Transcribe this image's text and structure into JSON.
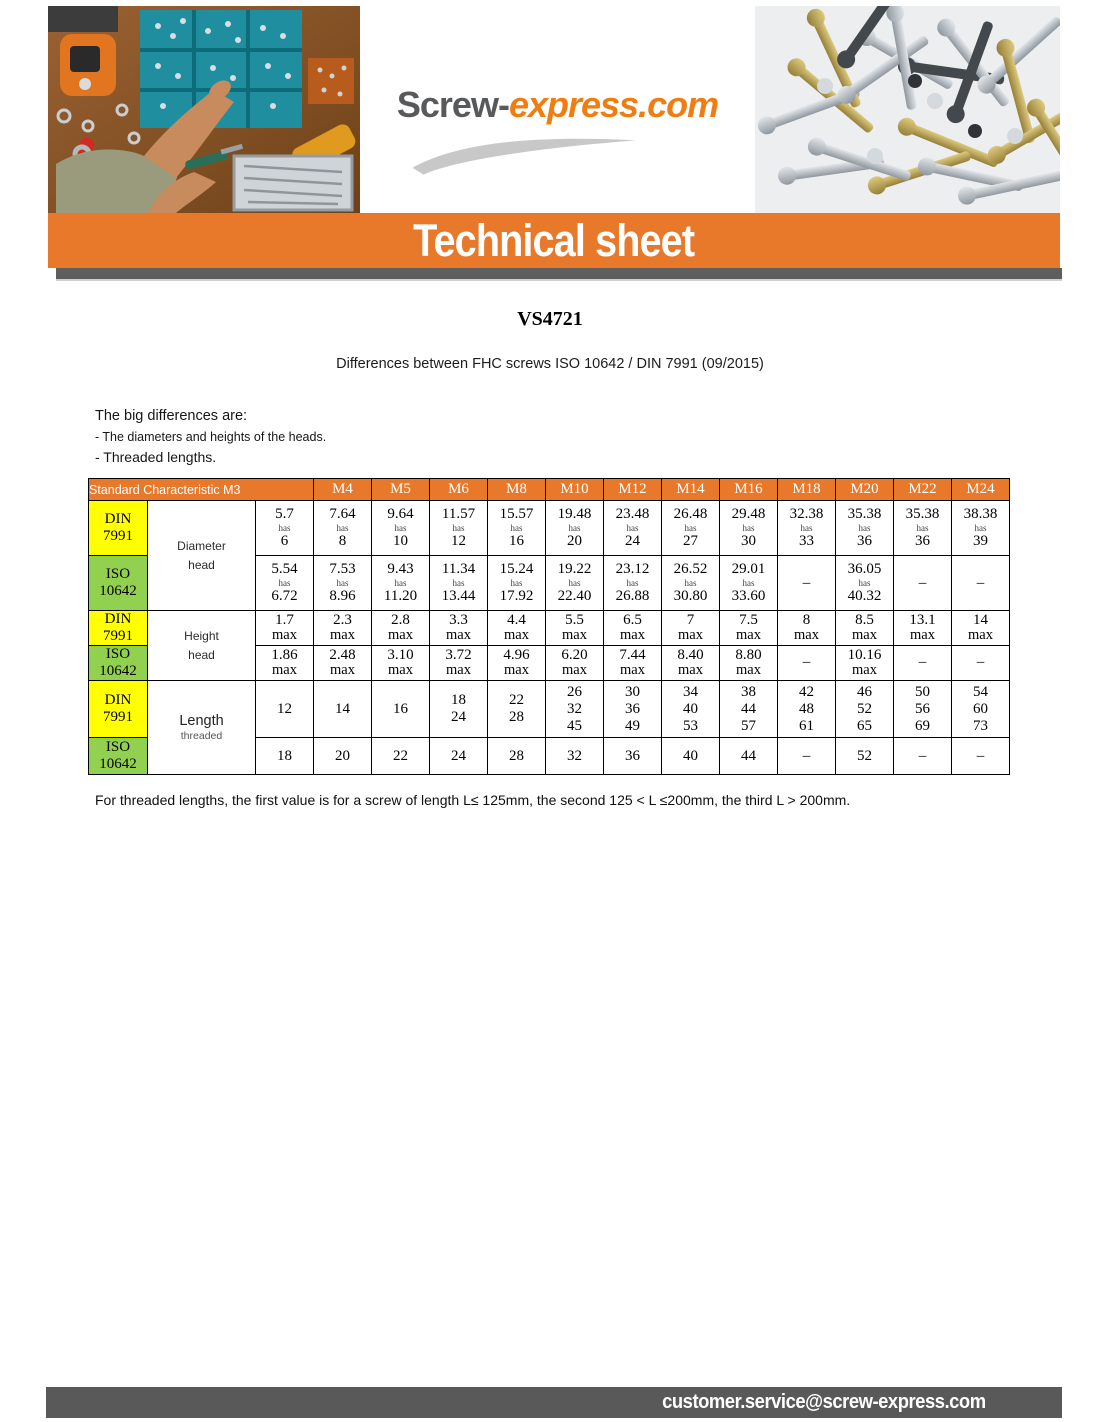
{
  "brand": {
    "logo_prefix": "Screw-",
    "logo_suffix": "express.com"
  },
  "banner": {
    "title": "Technical sheet"
  },
  "doc": {
    "code": "VS4721",
    "subtitle": "Differences between FHC screws ISO 10642 / DIN 7991 (09/2015)",
    "intro": [
      "The big differences are:",
      "- The diameters and heights of the heads.",
      "- Threaded lengths."
    ],
    "footnote": "For threaded lengths, the first value is for a screw of length L≤ 125mm, the second 125 < L ≤200mm, the third L > 200mm."
  },
  "footer": {
    "email": "customer.service@screw-express.com"
  },
  "colors": {
    "orange": "#E8782A",
    "yellow": "#FFFF00",
    "green": "#92D050",
    "bar_gray": "#595959",
    "logo_gray": "#58595B",
    "logo_orange": "#F07D12"
  },
  "photos": {
    "left": "workbench-with-screw-boxes-and-tools",
    "right": "pile-of-countersunk-screws"
  },
  "table": {
    "header": {
      "merged_label": "Standard Characteristic M3",
      "sizes": [
        "M4",
        "M5",
        "M6",
        "M8",
        "M10",
        "M12",
        "M14",
        "M16",
        "M18",
        "M20",
        "M22",
        "M24"
      ]
    },
    "row_groups": [
      {
        "characteristic": [
          "Diameter",
          "head"
        ],
        "rows": [
          {
            "standard": [
              "DIN",
              "7991"
            ],
            "cells": [
              [
                "5.7",
                "has",
                "6"
              ],
              [
                "7.64",
                "has",
                "8"
              ],
              [
                "9.64",
                "has",
                "10"
              ],
              [
                "11.57",
                "has",
                "12"
              ],
              [
                "15.57",
                "has",
                "16"
              ],
              [
                "19.48",
                "has",
                "20"
              ],
              [
                "23.48",
                "has",
                "24"
              ],
              [
                "26.48",
                "has",
                "27"
              ],
              [
                "29.48",
                "has",
                "30"
              ],
              [
                "32.38",
                "has",
                "33"
              ],
              [
                "35.38",
                "has",
                "36"
              ],
              [
                "35.38",
                "has",
                "36"
              ],
              [
                "38.38",
                "has",
                "39"
              ]
            ]
          },
          {
            "standard": [
              "ISO",
              "10642"
            ],
            "cells": [
              [
                "5.54",
                "has",
                "6.72"
              ],
              [
                "7.53",
                "has",
                "8.96"
              ],
              [
                "9.43",
                "has",
                "11.20"
              ],
              [
                "11.34",
                "has",
                "13.44"
              ],
              [
                "15.24",
                "has",
                "17.92"
              ],
              [
                "19.22",
                "has",
                "22.40"
              ],
              [
                "23.12",
                "has",
                "26.88"
              ],
              [
                "26.52",
                "has",
                "30.80"
              ],
              [
                "29.01",
                "has",
                "33.60"
              ],
              [
                "–"
              ],
              [
                "36.05",
                "has",
                "40.32"
              ],
              [
                "–"
              ],
              [
                "–"
              ]
            ]
          }
        ]
      },
      {
        "characteristic": [
          "Height",
          "head"
        ],
        "rows": [
          {
            "standard": [
              "DIN",
              "7991"
            ],
            "cells": [
              [
                "1.7",
                "max"
              ],
              [
                "2.3",
                "max"
              ],
              [
                "2.8",
                "max"
              ],
              [
                "3.3",
                "max"
              ],
              [
                "4.4",
                "max"
              ],
              [
                "5.5",
                "max"
              ],
              [
                "6.5",
                "max"
              ],
              [
                "7",
                "max"
              ],
              [
                "7.5",
                "max"
              ],
              [
                "8",
                "max"
              ],
              [
                "8.5",
                "max"
              ],
              [
                "13.1",
                "max"
              ],
              [
                "14",
                "max"
              ]
            ]
          },
          {
            "standard": [
              "ISO",
              "10642"
            ],
            "cells": [
              [
                "1.86",
                "max"
              ],
              [
                "2.48",
                "max"
              ],
              [
                "3.10",
                "max"
              ],
              [
                "3.72",
                "max"
              ],
              [
                "4.96",
                "max"
              ],
              [
                "6.20",
                "max"
              ],
              [
                "7.44",
                "max"
              ],
              [
                "8.40",
                "max"
              ],
              [
                "8.80",
                "max"
              ],
              [
                "–"
              ],
              [
                "10.16",
                "max"
              ],
              [
                "–"
              ],
              [
                "–"
              ]
            ]
          }
        ]
      },
      {
        "characteristic": [
          "Length",
          "threaded"
        ],
        "rows": [
          {
            "standard": [
              "DIN",
              "7991"
            ],
            "cells": [
              [
                "12"
              ],
              [
                "14"
              ],
              [
                "16"
              ],
              [
                "18",
                "24"
              ],
              [
                "22",
                "28"
              ],
              [
                "26",
                "32",
                "45"
              ],
              [
                "30",
                "36",
                "49"
              ],
              [
                "34",
                "40",
                "53"
              ],
              [
                "38",
                "44",
                "57"
              ],
              [
                "42",
                "48",
                "61"
              ],
              [
                "46",
                "52",
                "65"
              ],
              [
                "50",
                "56",
                "69"
              ],
              [
                "54",
                "60",
                "73"
              ]
            ]
          },
          {
            "standard": [
              "ISO",
              "10642"
            ],
            "cells": [
              [
                "18"
              ],
              [
                "20"
              ],
              [
                "22"
              ],
              [
                "24"
              ],
              [
                "28"
              ],
              [
                "32"
              ],
              [
                "36"
              ],
              [
                "40"
              ],
              [
                "44"
              ],
              [
                "–"
              ],
              [
                "52"
              ],
              [
                "–"
              ],
              [
                "–"
              ]
            ]
          }
        ]
      }
    ]
  }
}
